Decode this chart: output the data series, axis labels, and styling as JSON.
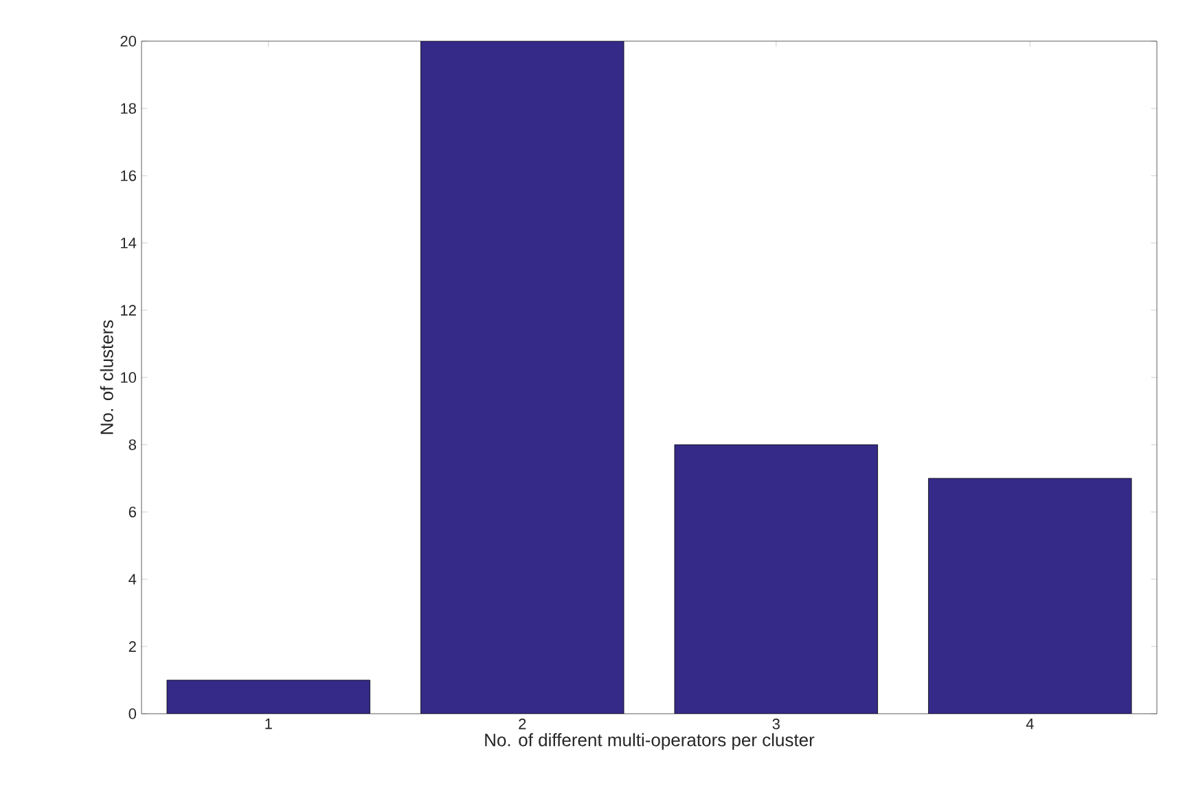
{
  "chart_data": {
    "type": "bar",
    "xlabel": "No. of different multi-operators per cluster",
    "ylabel": "No. of clusters",
    "categories": [
      "1",
      "2",
      "3",
      "4"
    ],
    "values": [
      1,
      20,
      8,
      7
    ],
    "color": "#352a87",
    "ylim": [
      0,
      20
    ],
    "yticks": [
      0,
      2,
      4,
      6,
      8,
      10,
      12,
      14,
      16,
      18,
      20
    ],
    "grid": false
  }
}
